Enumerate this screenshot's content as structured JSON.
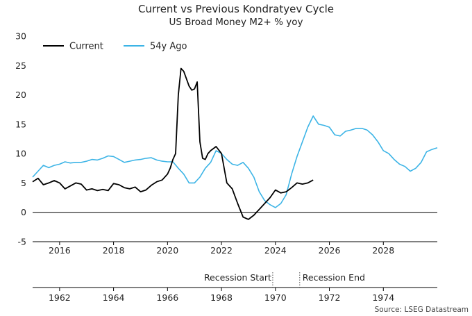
{
  "chart_data": {
    "type": "line",
    "title": "Current vs Previous Kondratyev Cycle",
    "subtitle": "US Broad Money M2+ % yoy",
    "ylim": [
      -5,
      30
    ],
    "yticks": [
      -5,
      0,
      5,
      10,
      15,
      20,
      25,
      30
    ],
    "x_top": {
      "range": [
        2015.0,
        2030.0
      ],
      "ticks": [
        "2016",
        "2018",
        "2020",
        "2022",
        "2024",
        "2026",
        "2028"
      ]
    },
    "x_bottom": {
      "range": [
        1961.0,
        1976.0
      ],
      "ticks": [
        "1962",
        "1964",
        "1966",
        "1968",
        "1970",
        "1972",
        "1974"
      ]
    },
    "annotations": [
      {
        "label": "Recession Start",
        "x": 1969.9
      },
      {
        "label": "Recession End",
        "x": 1970.9
      }
    ],
    "source": "Source: LSEG Datastream",
    "series": [
      {
        "name": "Current",
        "color": "#000000",
        "x": [
          2015.0,
          2015.2,
          2015.4,
          2015.6,
          2015.8,
          2016.0,
          2016.2,
          2016.4,
          2016.6,
          2016.8,
          2017.0,
          2017.2,
          2017.4,
          2017.6,
          2017.8,
          2018.0,
          2018.2,
          2018.4,
          2018.6,
          2018.8,
          2019.0,
          2019.2,
          2019.4,
          2019.6,
          2019.8,
          2020.0,
          2020.1,
          2020.2,
          2020.3,
          2020.4,
          2020.5,
          2020.6,
          2020.8,
          2020.9,
          2021.0,
          2021.1,
          2021.2,
          2021.3,
          2021.4,
          2021.5,
          2021.6,
          2021.8,
          2022.0,
          2022.2,
          2022.4,
          2022.6,
          2022.8,
          2023.0,
          2023.2,
          2023.4,
          2023.6,
          2023.8,
          2024.0,
          2024.2,
          2024.4,
          2024.6,
          2024.8,
          2025.0,
          2025.2,
          2025.4
        ],
        "values": [
          5.2,
          5.8,
          4.7,
          5.0,
          5.4,
          5.0,
          4.0,
          4.5,
          5.0,
          4.8,
          3.8,
          4.0,
          3.7,
          3.9,
          3.7,
          4.9,
          4.7,
          4.2,
          4.0,
          4.3,
          3.5,
          3.8,
          4.6,
          5.2,
          5.5,
          6.5,
          7.5,
          9.0,
          10.0,
          20.0,
          24.5,
          24.0,
          21.5,
          20.8,
          21.0,
          22.2,
          12.0,
          9.2,
          9.0,
          10.0,
          10.5,
          11.2,
          10.0,
          5.0,
          4.0,
          1.5,
          -0.8,
          -1.2,
          -0.5,
          0.5,
          1.5,
          2.5,
          3.8,
          3.3,
          3.5,
          4.2,
          5.0,
          4.8,
          5.0,
          5.5
        ]
      },
      {
        "name": "54y Ago",
        "color": "#3cb4e6",
        "x": [
          2015.0,
          2015.2,
          2015.4,
          2015.6,
          2015.8,
          2016.0,
          2016.2,
          2016.4,
          2016.6,
          2016.8,
          2017.0,
          2017.2,
          2017.4,
          2017.6,
          2017.8,
          2018.0,
          2018.2,
          2018.4,
          2018.6,
          2018.8,
          2019.0,
          2019.2,
          2019.4,
          2019.6,
          2019.8,
          2020.0,
          2020.2,
          2020.4,
          2020.6,
          2020.8,
          2021.0,
          2021.2,
          2021.4,
          2021.6,
          2021.8,
          2022.0,
          2022.2,
          2022.4,
          2022.6,
          2022.8,
          2023.0,
          2023.2,
          2023.4,
          2023.6,
          2023.8,
          2024.0,
          2024.2,
          2024.4,
          2024.6,
          2024.8,
          2025.0,
          2025.2,
          2025.4,
          2025.6,
          2025.8,
          2026.0,
          2026.2,
          2026.4,
          2026.6,
          2026.8,
          2027.0,
          2027.2,
          2027.4,
          2027.6,
          2027.8,
          2028.0,
          2028.2,
          2028.4,
          2028.6,
          2028.8,
          2029.0,
          2029.2,
          2029.4,
          2029.6,
          2029.8,
          2030.0
        ],
        "values": [
          6.0,
          7.0,
          8.0,
          7.6,
          8.0,
          8.2,
          8.6,
          8.4,
          8.5,
          8.5,
          8.7,
          9.0,
          8.9,
          9.2,
          9.6,
          9.5,
          9.0,
          8.5,
          8.7,
          8.9,
          9.0,
          9.2,
          9.3,
          8.9,
          8.7,
          8.6,
          8.6,
          7.5,
          6.5,
          5.0,
          5.0,
          6.0,
          7.5,
          8.5,
          10.5,
          10.0,
          9.0,
          8.2,
          8.0,
          8.5,
          7.5,
          6.0,
          3.5,
          2.0,
          1.3,
          0.8,
          1.5,
          3.0,
          6.5,
          9.5,
          12.0,
          14.5,
          16.4,
          15.0,
          14.8,
          14.5,
          13.2,
          13.0,
          13.8,
          14.0,
          14.3,
          14.3,
          14.0,
          13.2,
          12.0,
          10.5,
          10.0,
          9.0,
          8.2,
          7.8,
          7.0,
          7.5,
          8.5,
          10.3,
          10.7,
          11.0
        ]
      }
    ]
  }
}
